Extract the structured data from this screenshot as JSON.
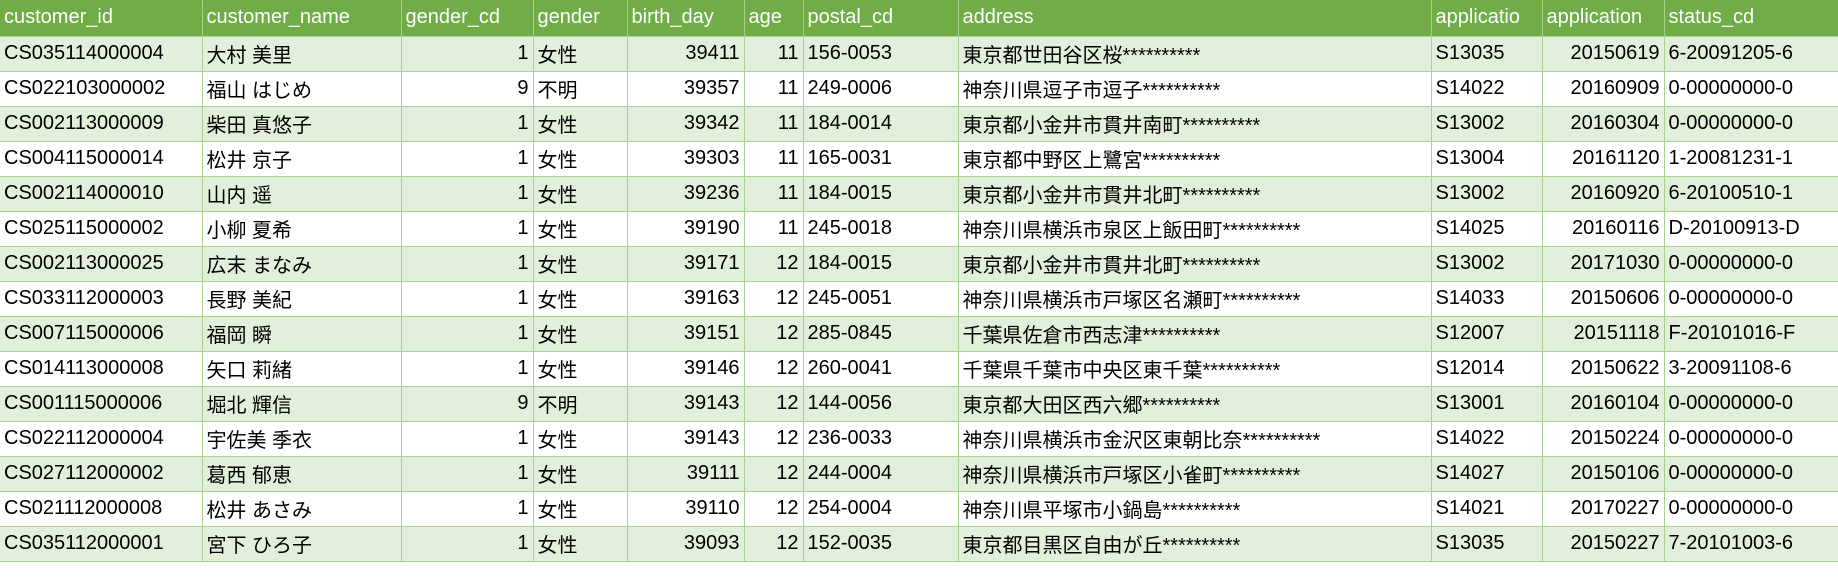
{
  "header_color": "#70AD47",
  "band_color": "#E2EFDA",
  "columns": [
    "customer_id",
    "customer_name",
    "gender_cd",
    "gender",
    "birth_day",
    "age",
    "postal_cd",
    "address",
    "applicatio",
    "application",
    "status_cd"
  ],
  "rows": [
    [
      "CS035114000004",
      "大村 美里",
      "1",
      "女性",
      "39411",
      "11",
      "156-0053",
      "東京都世田谷区桜**********",
      "S13035",
      "20150619",
      "6-20091205-6"
    ],
    [
      "CS022103000002",
      "福山 はじめ",
      "9",
      "不明",
      "39357",
      "11",
      "249-0006",
      "神奈川県逗子市逗子**********",
      "S14022",
      "20160909",
      "0-00000000-0"
    ],
    [
      "CS002113000009",
      "柴田 真悠子",
      "1",
      "女性",
      "39342",
      "11",
      "184-0014",
      "東京都小金井市貫井南町**********",
      "S13002",
      "20160304",
      "0-00000000-0"
    ],
    [
      "CS004115000014",
      "松井 京子",
      "1",
      "女性",
      "39303",
      "11",
      "165-0031",
      "東京都中野区上鷺宮**********",
      "S13004",
      "20161120",
      "1-20081231-1"
    ],
    [
      "CS002114000010",
      "山内 遥",
      "1",
      "女性",
      "39236",
      "11",
      "184-0015",
      "東京都小金井市貫井北町**********",
      "S13002",
      "20160920",
      "6-20100510-1"
    ],
    [
      "CS025115000002",
      "小柳 夏希",
      "1",
      "女性",
      "39190",
      "11",
      "245-0018",
      "神奈川県横浜市泉区上飯田町**********",
      "S14025",
      "20160116",
      "D-20100913-D"
    ],
    [
      "CS002113000025",
      "広末 まなみ",
      "1",
      "女性",
      "39171",
      "12",
      "184-0015",
      "東京都小金井市貫井北町**********",
      "S13002",
      "20171030",
      "0-00000000-0"
    ],
    [
      "CS033112000003",
      "長野 美紀",
      "1",
      "女性",
      "39163",
      "12",
      "245-0051",
      "神奈川県横浜市戸塚区名瀬町**********",
      "S14033",
      "20150606",
      "0-00000000-0"
    ],
    [
      "CS007115000006",
      "福岡 瞬",
      "1",
      "女性",
      "39151",
      "12",
      "285-0845",
      "千葉県佐倉市西志津**********",
      "S12007",
      "20151118",
      "F-20101016-F"
    ],
    [
      "CS014113000008",
      "矢口 莉緒",
      "1",
      "女性",
      "39146",
      "12",
      "260-0041",
      "千葉県千葉市中央区東千葉**********",
      "S12014",
      "20150622",
      "3-20091108-6"
    ],
    [
      "CS001115000006",
      "堀北 輝信",
      "9",
      "不明",
      "39143",
      "12",
      "144-0056",
      "東京都大田区西六郷**********",
      "S13001",
      "20160104",
      "0-00000000-0"
    ],
    [
      "CS022112000004",
      "宇佐美 季衣",
      "1",
      "女性",
      "39143",
      "12",
      "236-0033",
      "神奈川県横浜市金沢区東朝比奈**********",
      "S14022",
      "20150224",
      "0-00000000-0"
    ],
    [
      "CS027112000002",
      "葛西 郁恵",
      "1",
      "女性",
      "39111",
      "12",
      "244-0004",
      "神奈川県横浜市戸塚区小雀町**********",
      "S14027",
      "20150106",
      "0-00000000-0"
    ],
    [
      "CS021112000008",
      "松井 あさみ",
      "1",
      "女性",
      "39110",
      "12",
      "254-0004",
      "神奈川県平塚市小鍋島**********",
      "S14021",
      "20170227",
      "0-00000000-0"
    ],
    [
      "CS035112000001",
      "宮下 ひろ子",
      "1",
      "女性",
      "39093",
      "12",
      "152-0035",
      "東京都目黒区自由が丘**********",
      "S13035",
      "20150227",
      "7-20101003-6"
    ]
  ]
}
